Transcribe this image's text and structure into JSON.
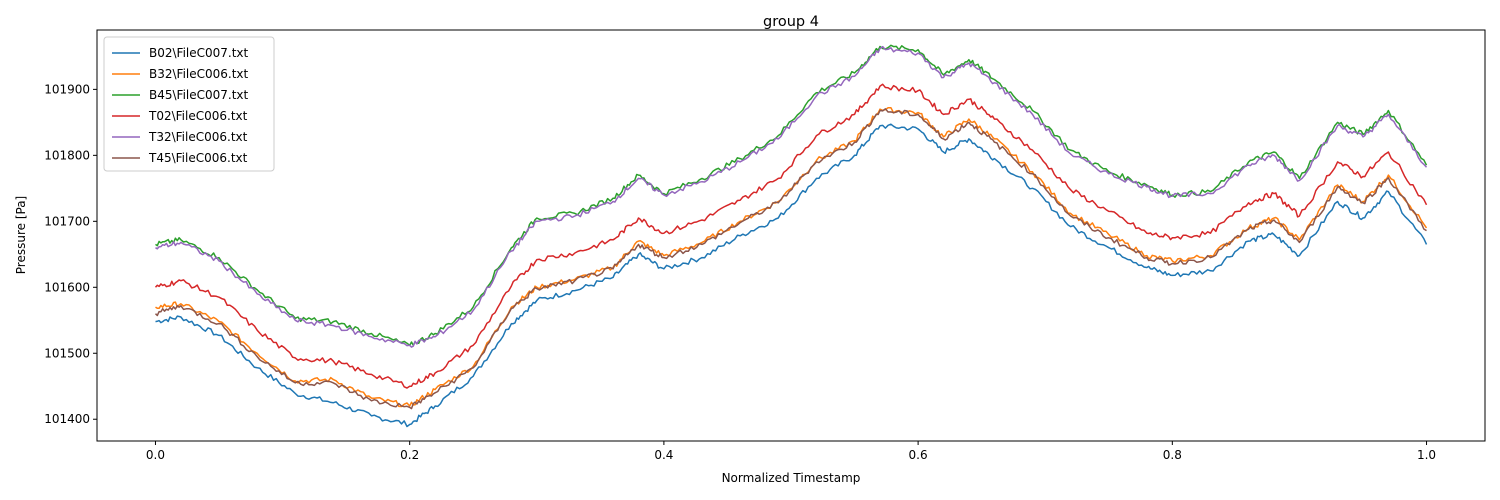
{
  "chart_data": {
    "type": "line",
    "title": "group 4",
    "xlabel": "Normalized Timestamp",
    "ylabel": "Pressure [Pa]",
    "xlim": [
      -0.046,
      1.046
    ],
    "ylim": [
      101367,
      101990
    ],
    "x_ticks": [
      0.0,
      0.2,
      0.4,
      0.6,
      0.8,
      1.0
    ],
    "x_tick_labels": [
      "0.0",
      "0.2",
      "0.4",
      "0.6",
      "0.8",
      "1.0"
    ],
    "y_ticks": [
      101400,
      101500,
      101600,
      101700,
      101800,
      101900
    ],
    "y_tick_labels": [
      "101400",
      "101500",
      "101600",
      "101700",
      "101800",
      "101900"
    ],
    "grid": false,
    "legend_position": "top-left",
    "x": [
      0.0,
      0.02,
      0.05,
      0.08,
      0.11,
      0.14,
      0.17,
      0.2,
      0.22,
      0.25,
      0.28,
      0.3,
      0.33,
      0.36,
      0.38,
      0.4,
      0.43,
      0.46,
      0.49,
      0.52,
      0.55,
      0.57,
      0.6,
      0.62,
      0.64,
      0.66,
      0.69,
      0.72,
      0.75,
      0.78,
      0.8,
      0.83,
      0.86,
      0.88,
      0.9,
      0.93,
      0.95,
      0.97,
      1.0
    ],
    "series": [
      {
        "name": "B02\\FileC007.txt",
        "color": "#1f77b4",
        "values": [
          101548,
          101555,
          101527,
          101478,
          101439,
          101425,
          101405,
          101392,
          101420,
          101465,
          101545,
          101580,
          101595,
          101615,
          101650,
          101628,
          101645,
          101678,
          101705,
          101765,
          101800,
          101845,
          101840,
          101805,
          101825,
          101795,
          101750,
          101692,
          101660,
          101630,
          101618,
          101625,
          101670,
          101680,
          101648,
          101730,
          101705,
          101745,
          101665
        ]
      },
      {
        "name": "B32\\FileC006.txt",
        "color": "#ff7f0e",
        "values": [
          101570,
          101575,
          101548,
          101500,
          101458,
          101460,
          101432,
          101420,
          101445,
          101480,
          101570,
          101600,
          101612,
          101630,
          101670,
          101648,
          101668,
          101700,
          101730,
          101792,
          101822,
          101870,
          101865,
          101828,
          101855,
          101825,
          101775,
          101712,
          101680,
          101648,
          101640,
          101648,
          101690,
          101705,
          101672,
          101755,
          101730,
          101770,
          101690
        ]
      },
      {
        "name": "B45\\FileC007.txt",
        "color": "#2ca02c",
        "values": [
          101665,
          101672,
          101645,
          101596,
          101553,
          101548,
          101530,
          101512,
          101530,
          101570,
          101660,
          101705,
          101712,
          101735,
          101770,
          101742,
          101765,
          101795,
          101830,
          101895,
          101925,
          101965,
          101960,
          101922,
          101945,
          101915,
          101868,
          101808,
          101775,
          101755,
          101740,
          101745,
          101790,
          101805,
          101765,
          101850,
          101832,
          101868,
          101785
        ]
      },
      {
        "name": "T02\\FileC006.txt",
        "color": "#d62728",
        "values": [
          101600,
          101610,
          101585,
          101535,
          101493,
          101488,
          101468,
          101450,
          101470,
          101512,
          101602,
          101642,
          101652,
          101672,
          101705,
          101682,
          101702,
          101732,
          101765,
          101830,
          101862,
          101905,
          101898,
          101862,
          101885,
          101855,
          101808,
          101748,
          101715,
          101682,
          101675,
          101682,
          101728,
          101742,
          101708,
          101790,
          101768,
          101805,
          101725
        ]
      },
      {
        "name": "T32\\FileC006.txt",
        "color": "#9467bd",
        "values": [
          101660,
          101668,
          101640,
          101590,
          101550,
          101542,
          101525,
          101512,
          101525,
          101565,
          101655,
          101700,
          101708,
          101730,
          101765,
          101740,
          101760,
          101790,
          101825,
          101890,
          101920,
          101962,
          101955,
          101918,
          101940,
          101910,
          101862,
          101802,
          101772,
          101752,
          101738,
          101742,
          101785,
          101800,
          101762,
          101845,
          101828,
          101862,
          101782
        ]
      },
      {
        "name": "T45\\FileC006.txt",
        "color": "#8c564b",
        "values": [
          101560,
          101572,
          101545,
          101495,
          101455,
          101455,
          101428,
          101418,
          101440,
          101478,
          101568,
          101598,
          101610,
          101628,
          101665,
          101645,
          101665,
          101698,
          101728,
          101790,
          101820,
          101868,
          101862,
          101825,
          101850,
          101820,
          101772,
          101708,
          101675,
          101645,
          101636,
          101645,
          101688,
          101702,
          101668,
          101752,
          101728,
          101766,
          101686
        ]
      }
    ]
  }
}
